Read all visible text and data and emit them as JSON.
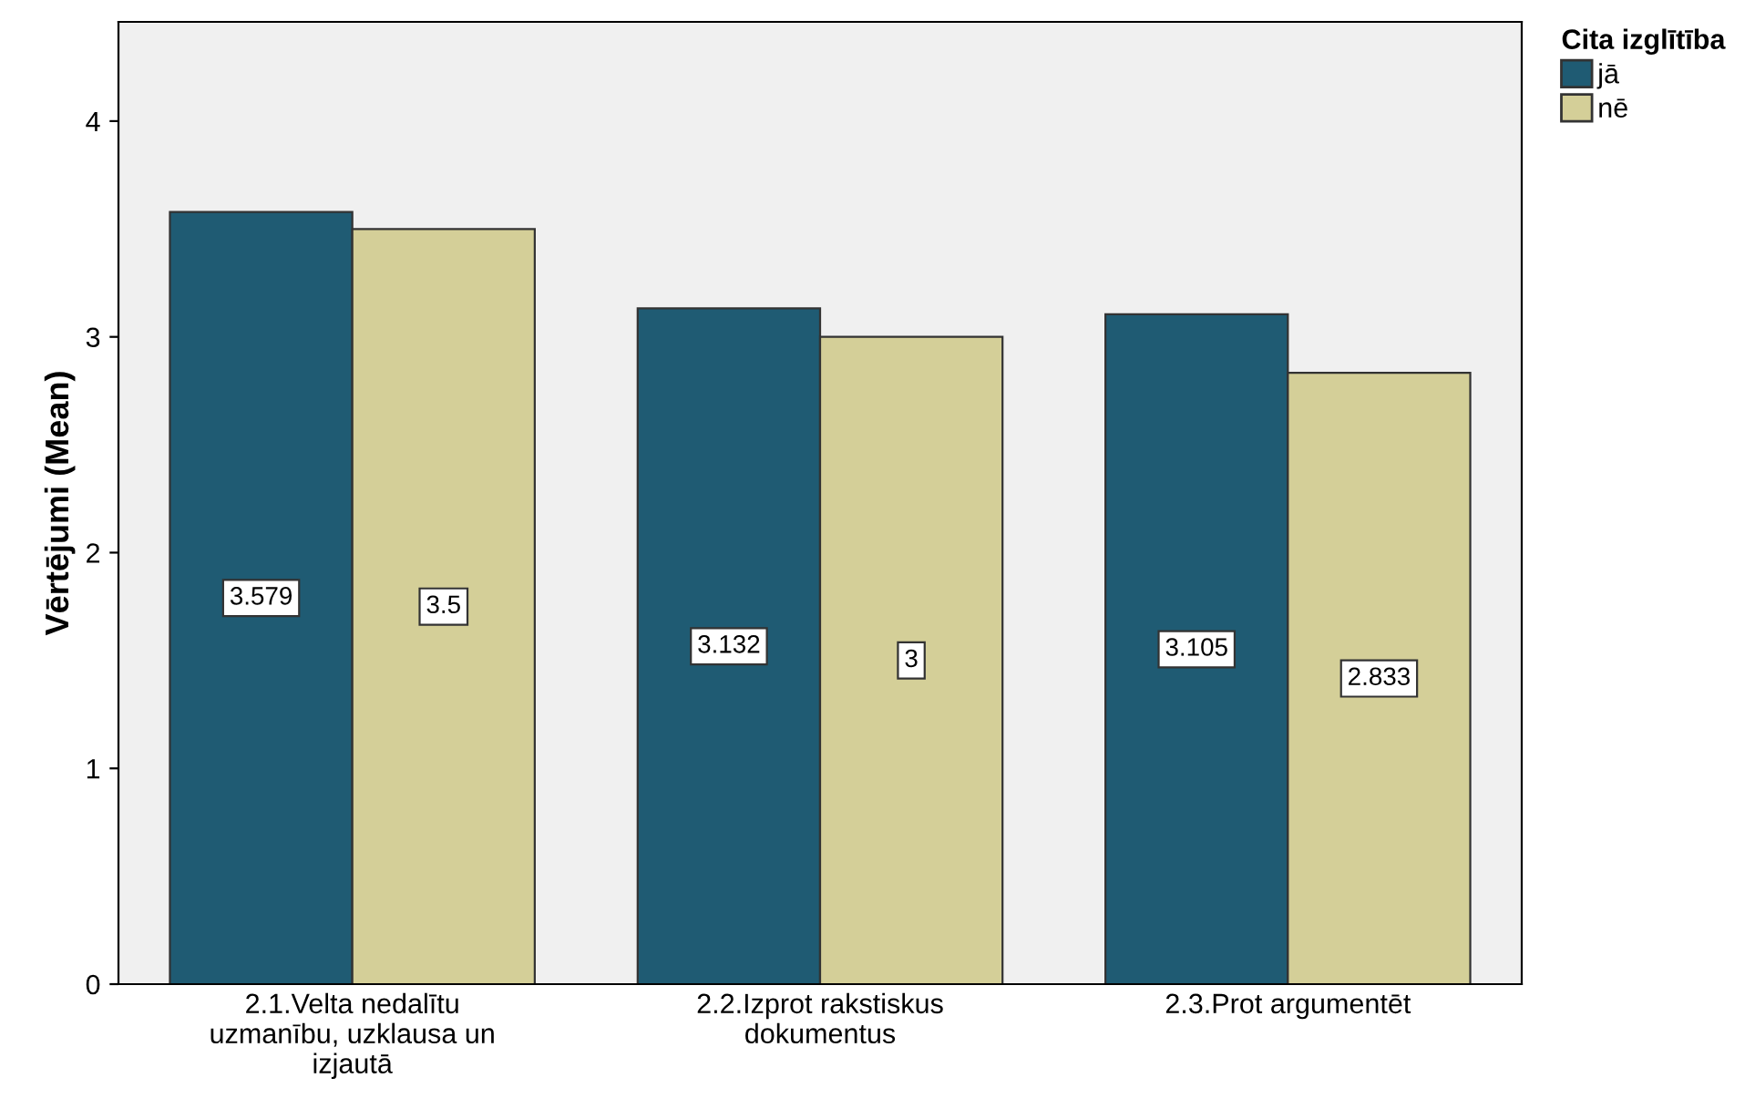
{
  "chart_data": {
    "type": "bar",
    "ylabel": "Vērtējumi (Mean)",
    "legend_title": "Cita izglītība",
    "categories": [
      "2.1.Velta nedalītu\nuzmanību, uzklausa un\nizjautā",
      "2.2.Izprot rakstiskus\ndokumentus",
      "2.3.Prot argumentēt"
    ],
    "series": [
      {
        "name": "jā",
        "color": "#1f5b73",
        "values": [
          3.579,
          3.132,
          3.105
        ]
      },
      {
        "name": "nē",
        "color": "#d4cf98",
        "values": [
          3.5,
          3,
          2.833
        ]
      }
    ],
    "ylim": [
      0,
      4.46
    ],
    "yticks": [
      0,
      1,
      2,
      3,
      4
    ],
    "data_labels": true,
    "grid": false,
    "legend": "top right"
  }
}
